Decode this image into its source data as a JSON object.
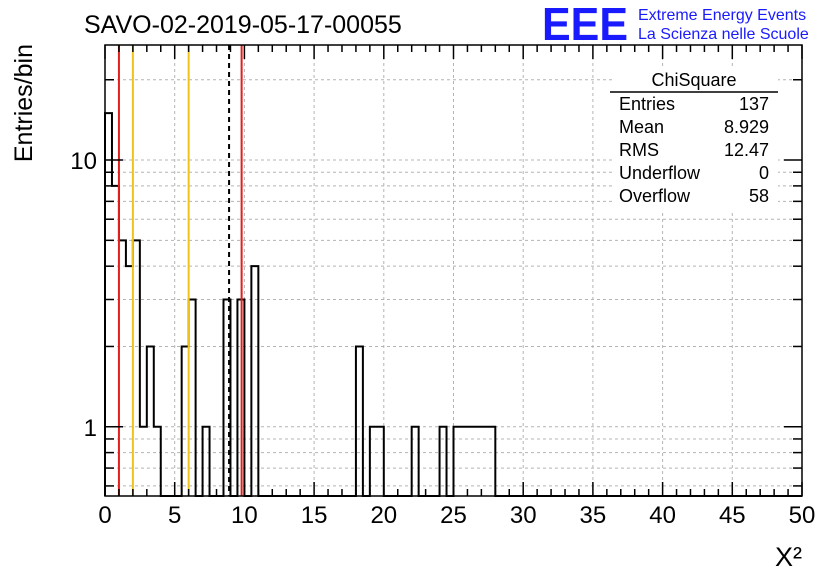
{
  "chart_data": {
    "type": "bar",
    "subtype": "histogram",
    "title": "SAVO-02-2019-05-17-00055",
    "xlabel": "X²",
    "ylabel": "Entries/bin",
    "xlim": [
      0,
      50
    ],
    "ylim": [
      0.55,
      27
    ],
    "yscale": "log",
    "grid": true,
    "bin_width": 0.5,
    "xticks": [
      "0",
      "5",
      "10",
      "15",
      "20",
      "25",
      "30",
      "35",
      "40",
      "45",
      "50"
    ],
    "yticks": [
      "1",
      "10"
    ],
    "ytick_values": [
      1,
      10
    ],
    "values": [
      15,
      8,
      5,
      4,
      5,
      1,
      2,
      1,
      0,
      0,
      0,
      2,
      3,
      0,
      1,
      0,
      0,
      3,
      0,
      3,
      0,
      4,
      0,
      0,
      0,
      0,
      0,
      0,
      0,
      0,
      0,
      0,
      0,
      0,
      0,
      0,
      2,
      0,
      1,
      1,
      0,
      0,
      0,
      0,
      1,
      0,
      0,
      0,
      1,
      0,
      1,
      1,
      1,
      1,
      1,
      1,
      0,
      0,
      0,
      0,
      0,
      0,
      0,
      0,
      0,
      0,
      0,
      0,
      0,
      0,
      0,
      0,
      0,
      0,
      0,
      0,
      0,
      0,
      0,
      0,
      0,
      0,
      0,
      0,
      0,
      0,
      0,
      0,
      0,
      0,
      0,
      0,
      0,
      0,
      0,
      0,
      0,
      0,
      0,
      0
    ],
    "vertical_lines": [
      {
        "x": 1.0,
        "color": "#e0201a",
        "style": "solid"
      },
      {
        "x": 9.8,
        "color": "#e0201a",
        "style": "solid"
      },
      {
        "x": 2.0,
        "color": "#f0c21a",
        "style": "solid"
      },
      {
        "x": 6.0,
        "color": "#f0c21a",
        "style": "solid"
      },
      {
        "x": 8.9,
        "color": "#000000",
        "style": "dashed"
      }
    ],
    "stats_box": {
      "title": "ChiSquare",
      "rows": [
        {
          "label": "Entries",
          "value": "137"
        },
        {
          "label": "Mean",
          "value": "8.929"
        },
        {
          "label": "RMS",
          "value": "12.47"
        },
        {
          "label": "Underflow",
          "value": "0"
        },
        {
          "label": "Overflow",
          "value": "58"
        }
      ]
    },
    "logo": {
      "text": "EEE",
      "line1": "Extreme Energy Events",
      "line2": "La Scienza nelle Scuole",
      "color": "#1a1aff"
    }
  }
}
